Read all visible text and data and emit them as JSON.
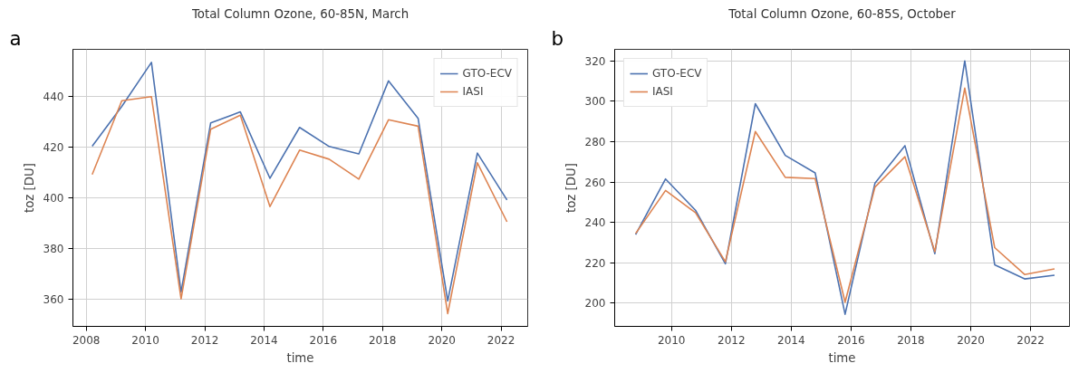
{
  "chart_data": [
    {
      "type": "line",
      "title": "Total Column Ozone, 60-85N, March",
      "xlabel": "time",
      "ylabel": "toz [DU]",
      "annotations": [
        "a"
      ],
      "x": [
        2008.2,
        2009.2,
        2010.2,
        2011.2,
        2012.2,
        2013.2,
        2014.2,
        2015.2,
        2016.2,
        2017.2,
        2018.2,
        2019.2,
        2020.2,
        2021.2,
        2022.2
      ],
      "series": [
        {
          "name": "GTO-ECV",
          "color": "#4c72b0",
          "values": [
            420.3,
            436,
            453.3,
            363,
            429.5,
            433.8,
            407.7,
            427.7,
            420.2,
            417.3,
            446,
            431.3,
            359.5,
            417.6,
            399.2
          ]
        },
        {
          "name": "IASI",
          "color": "#dd8452",
          "values": [
            409.2,
            438.2,
            439.8,
            360.3,
            427,
            432.5,
            396.6,
            418.8,
            415.2,
            407.4,
            430.7,
            428.2,
            354.5,
            413.8,
            390.6
          ]
        }
      ],
      "xlim": [
        2007.55,
        2022.9
      ],
      "xticks": [
        2008,
        2010,
        2012,
        2014,
        2016,
        2018,
        2020,
        2022
      ],
      "ylim": [
        349.5,
        458.4
      ],
      "yticks": [
        360,
        380,
        400,
        420,
        440
      ],
      "grid": true,
      "legend": "top right"
    },
    {
      "type": "line",
      "title": "Total Column Ozone, 60-85S, October",
      "xlabel": "time",
      "ylabel": "toz [DU]",
      "annotations": [
        "b"
      ],
      "x": [
        2008.8,
        2009.8,
        2010.8,
        2011.8,
        2012.8,
        2013.8,
        2014.8,
        2015.8,
        2016.8,
        2017.8,
        2018.8,
        2019.8,
        2020.8,
        2021.8,
        2022.8
      ],
      "series": [
        {
          "name": "GTO-ECV",
          "color": "#4c72b0",
          "values": [
            234,
            261.5,
            246,
            219.5,
            298.8,
            273.2,
            264.5,
            194.5,
            259.5,
            278,
            224.5,
            320,
            219,
            212,
            213.8
          ]
        },
        {
          "name": "IASI",
          "color": "#dd8452",
          "values": [
            234.5,
            255.8,
            244.8,
            220.5,
            285,
            262.3,
            261.7,
            200.5,
            257.5,
            272.5,
            225.5,
            306.5,
            227.5,
            214.2,
            217
          ]
        }
      ],
      "xlim": [
        2008.1,
        2023.3
      ],
      "xticks": [
        2010,
        2012,
        2014,
        2016,
        2018,
        2020,
        2022
      ],
      "ylim": [
        188.5,
        325.7
      ],
      "yticks": [
        200,
        220,
        240,
        260,
        280,
        300,
        320
      ],
      "grid": true,
      "legend": "top left"
    }
  ]
}
